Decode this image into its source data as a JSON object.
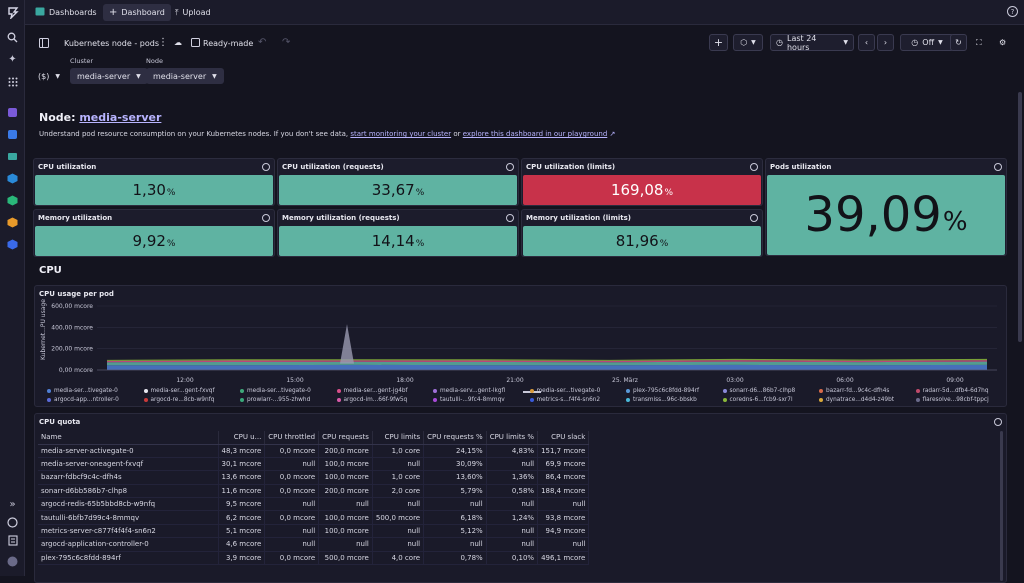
{
  "topbar": {
    "tabs": [
      {
        "label": "Dashboards",
        "icon": "dashboards-icon"
      },
      {
        "label": "Dashboard",
        "icon": "plus-icon"
      },
      {
        "label": "Upload",
        "icon": "upload-icon"
      }
    ]
  },
  "toolbar": {
    "title": "Kubernetes node - pods",
    "ready_made": "Ready-made",
    "timeframe": "Last 24 hours",
    "refresh": "Off"
  },
  "filters": {
    "variable": "($)",
    "cluster_label": "Cluster",
    "cluster_value": "media-server",
    "node_label": "Node",
    "node_value": "media-server"
  },
  "intro": {
    "node_prefix": "Node:",
    "node_name": "media-server",
    "desc_text": "Understand pod resource consumption on your Kubernetes nodes. If you don't see data,",
    "link1": "start monitoring your cluster",
    "or": "or",
    "link2": "explore this dashboard in our playground"
  },
  "tiles": [
    {
      "title": "CPU utilization",
      "value": "1,30",
      "unit": "%",
      "color": "#5fb3a2"
    },
    {
      "title": "CPU utilization (requests)",
      "value": "33,67",
      "unit": "%",
      "color": "#5fb3a2"
    },
    {
      "title": "CPU utilization (limits)",
      "value": "169,08",
      "unit": "%",
      "color": "#c8324a"
    },
    {
      "title": "Memory utilization",
      "value": "9,92",
      "unit": "%",
      "color": "#5fb3a2"
    },
    {
      "title": "Memory utilization (requests)",
      "value": "14,14",
      "unit": "%",
      "color": "#5fb3a2"
    },
    {
      "title": "Memory utilization (limits)",
      "value": "81,96",
      "unit": "%",
      "color": "#5fb3a2"
    },
    {
      "title": "Pods utilization",
      "value": "39,09",
      "unit": "%",
      "color": "#5fb3a2"
    }
  ],
  "cpu_section": "CPU",
  "chart": {
    "title": "CPU usage per pod",
    "ylabel": "Kubernet...PU usage",
    "yticks": [
      "600,00 mcore",
      "400,00 mcore",
      "200,00 mcore",
      "0,00 mcore"
    ],
    "xticks": [
      "12:00",
      "15:00",
      "18:00",
      "21:00",
      "25. März",
      "03:00",
      "06:00",
      "09:00"
    ],
    "legend_row1": [
      {
        "label": "media-ser...tivegate-0",
        "color": "#4f7fd4"
      },
      {
        "label": "media-ser...gent-fxvqf",
        "color": "#e8e8f0"
      },
      {
        "label": "media-ser...tivegate-0",
        "color": "#3fa97a"
      },
      {
        "label": "media-ser...gent-jg4bf",
        "color": "#d84f8a"
      },
      {
        "label": "media-serv...gent-lkgfl",
        "color": "#a070d8"
      },
      {
        "label": "media-ser...tivegate-0",
        "color": "#d89a3a"
      },
      {
        "label": "plex-795c6c8fdd-894rf",
        "color": "#5a9ad8"
      },
      {
        "label": "sonarr-d6...86b7-clhp8",
        "color": "#8a8ad8"
      },
      {
        "label": "bazarr-fd...9c4c-dfh4s",
        "color": "#d86a4a"
      },
      {
        "label": "radarr-5d...dfb4-6d7hq",
        "color": "#c04a6a"
      }
    ],
    "legend_row2": [
      {
        "label": "argocd-app...ntroller-0",
        "color": "#5a6ad8"
      },
      {
        "label": "argocd-re...8cb-w9nfq",
        "color": "#c83a3a"
      },
      {
        "label": "prowlarr-...955-zhwhd",
        "color": "#3aa87a"
      },
      {
        "label": "argocd-im...66f-9fw5q",
        "color": "#d85aa8"
      },
      {
        "label": "tautulli-...9fc4-8mmqv",
        "color": "#a84ad8"
      },
      {
        "label": "metrics-s...f4f4-sn6n2",
        "color": "#3a5ad8"
      },
      {
        "label": "transmiss...96c-bbskb",
        "color": "#4ab8d8"
      },
      {
        "label": "coredns-6...fcb9-sxr7l",
        "color": "#8ab83a"
      },
      {
        "label": "dynatrace...d4d4-z49bt",
        "color": "#d8a83a"
      },
      {
        "label": "flaresolve...98cbf-tppcj",
        "color": "#6a6a8a"
      }
    ]
  },
  "chart_data": {
    "type": "area",
    "title": "CPU usage per pod",
    "xlabel": "",
    "ylabel": "Kubernet...PU usage",
    "ylim": [
      0,
      600
    ],
    "x": [
      "12:00",
      "15:00",
      "18:00",
      "21:00",
      "25. März",
      "03:00",
      "06:00",
      "09:00"
    ],
    "series": [
      {
        "name": "media-ser...tivegate-0",
        "values": [
          45,
          45,
          48,
          45,
          45,
          48,
          45,
          48
        ]
      },
      {
        "name": "media-ser...gent-fxvqf",
        "values": [
          28,
          30,
          29,
          30,
          28,
          30,
          29,
          30
        ]
      },
      {
        "name": "bazarr-fd...9c4c-dfh4s",
        "values": [
          12,
          14,
          13,
          14,
          12,
          14,
          13,
          14
        ]
      },
      {
        "name": "sonarr-d6...86b7-clhp8",
        "values": [
          10,
          12,
          11,
          12,
          10,
          12,
          11,
          12
        ]
      }
    ]
  },
  "quota": {
    "title": "CPU quota",
    "headers": [
      "Name",
      "CPU u...",
      "CPU throttled",
      "CPU requests",
      "CPU limits",
      "CPU requests %",
      "CPU limits %",
      "CPU slack"
    ],
    "rows": [
      [
        "media-server-activegate-0",
        "48,3 mcore",
        "0,0 mcore",
        "200,0 mcore",
        "1,0 core",
        "24,15%",
        "4,83%",
        "151,7 mcore"
      ],
      [
        "media-server-oneagent-fxvqf",
        "30,1 mcore",
        "null",
        "100,0 mcore",
        "null",
        "30,09%",
        "null",
        "69,9 mcore"
      ],
      [
        "bazarr-fdbcf9c4c-dfh4s",
        "13,6 mcore",
        "0,0 mcore",
        "100,0 mcore",
        "1,0 core",
        "13,60%",
        "1,36%",
        "86,4 mcore"
      ],
      [
        "sonarr-d6bb586b7-clhp8",
        "11,6 mcore",
        "0,0 mcore",
        "200,0 mcore",
        "2,0 core",
        "5,79%",
        "0,58%",
        "188,4 mcore"
      ],
      [
        "argocd-redis-65b5bbd8cb-w9nfq",
        "9,5 mcore",
        "null",
        "null",
        "null",
        "null",
        "null",
        "null"
      ],
      [
        "tautulli-6bfb7d99c4-8mmqv",
        "6,2 mcore",
        "0,0 mcore",
        "100,0 mcore",
        "500,0 mcore",
        "6,18%",
        "1,24%",
        "93,8 mcore"
      ],
      [
        "metrics-server-c877f4f4f4-sn6n2",
        "5,1 mcore",
        "null",
        "100,0 mcore",
        "null",
        "5,12%",
        "null",
        "94,9 mcore"
      ],
      [
        "argocd-application-controller-0",
        "4,6 mcore",
        "null",
        "null",
        "null",
        "null",
        "null",
        "null"
      ],
      [
        "plex-795c6c8fdd-894rf",
        "3,9 mcore",
        "0,0 mcore",
        "500,0 mcore",
        "4,0 core",
        "0,78%",
        "0,10%",
        "496,1 mcore"
      ]
    ]
  }
}
